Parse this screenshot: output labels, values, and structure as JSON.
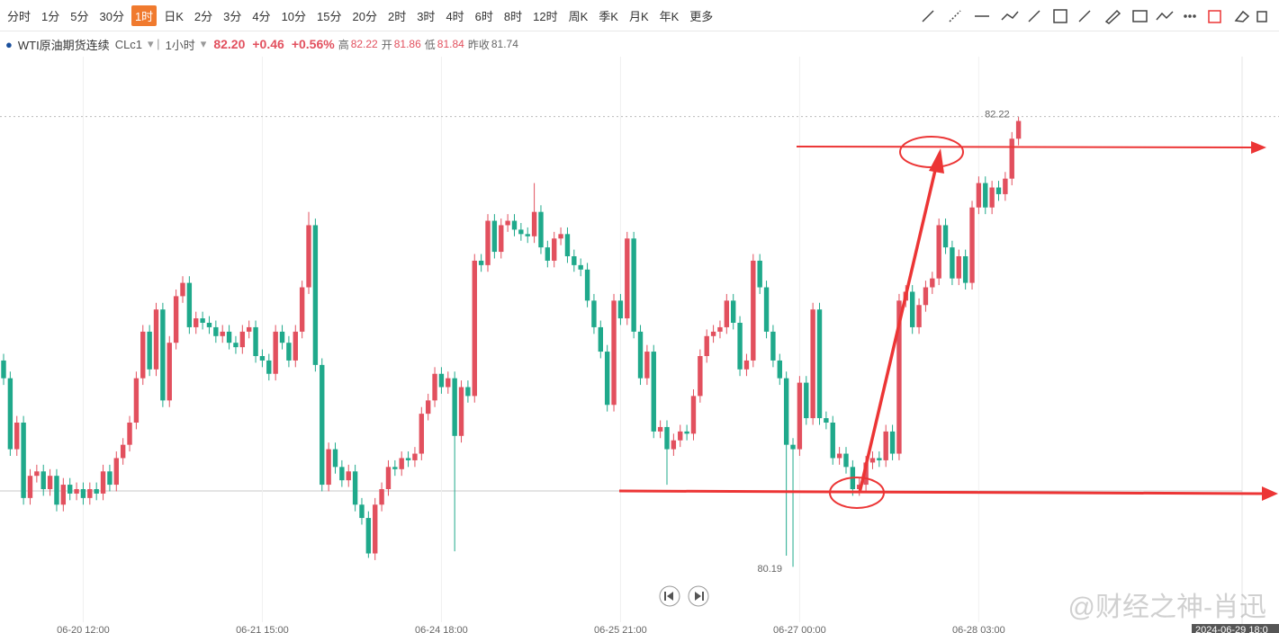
{
  "toolbar": {
    "periods": [
      "分时",
      "1分",
      "5分",
      "30分",
      "1时",
      "日K",
      "2分",
      "3分",
      "4分",
      "10分",
      "15分",
      "20分",
      "2时",
      "3时",
      "4时",
      "6时",
      "8时",
      "12时",
      "周K",
      "季K",
      "月K",
      "年K",
      "更多"
    ],
    "selected": "1时"
  },
  "info": {
    "name": "WTI原油期货连续",
    "code": "CLc1",
    "period": "1小时",
    "last": "82.20",
    "change": "+0.46",
    "change_pct": "+0.56%",
    "high_label": "高",
    "high": "82.22",
    "open_label": "开",
    "open": "81.86",
    "low_label": "低",
    "low": "81.84",
    "prev_label": "昨收",
    "prev": "81.74"
  },
  "watermark": "@财经之神-肖迅",
  "chart_data": {
    "type": "candlestick",
    "up_color": "#e2505e",
    "down_color": "#1fa98b",
    "ylim": [
      79.94,
      82.49
    ],
    "grid": true,
    "crosshair_time": "2024-06-29 18:0",
    "categories": [
      null,
      null,
      null,
      null,
      null,
      null,
      null,
      null,
      null,
      null,
      null,
      null,
      "06-20 12:00",
      null,
      null,
      null,
      null,
      null,
      null,
      null,
      null,
      null,
      null,
      null,
      null,
      null,
      null,
      null,
      null,
      null,
      null,
      null,
      null,
      null,
      null,
      null,
      null,
      null,
      null,
      "06-21 15:00",
      null,
      null,
      null,
      null,
      null,
      null,
      null,
      null,
      null,
      null,
      null,
      null,
      null,
      null,
      null,
      null,
      null,
      null,
      null,
      null,
      null,
      null,
      null,
      null,
      null,
      null,
      "06-24 18:00",
      null,
      null,
      null,
      null,
      null,
      null,
      null,
      null,
      null,
      null,
      null,
      null,
      null,
      null,
      null,
      null,
      null,
      null,
      null,
      null,
      null,
      null,
      null,
      null,
      null,
      null,
      "06-25 21:00",
      null,
      null,
      null,
      null,
      null,
      null,
      null,
      null,
      null,
      null,
      null,
      null,
      null,
      null,
      null,
      null,
      null,
      null,
      null,
      null,
      null,
      null,
      null,
      null,
      null,
      null,
      "06-27 00:00",
      null,
      null,
      null,
      null,
      null,
      null,
      null,
      null,
      null,
      null,
      null,
      null,
      null,
      null,
      null,
      null,
      null,
      null,
      null,
      null,
      null,
      null,
      null,
      null,
      null,
      null,
      "06-28 03:00",
      null,
      null,
      null,
      null,
      null,
      null
    ],
    "open": [
      81.12,
      81.04,
      80.72,
      80.84,
      80.5,
      80.6,
      80.62,
      80.54,
      80.6,
      80.47,
      80.56,
      80.52,
      80.54,
      80.5,
      80.54,
      80.52,
      80.62,
      80.56,
      80.68,
      80.74,
      80.84,
      81.04,
      81.25,
      81.08,
      81.35,
      80.94,
      81.2,
      81.41,
      81.47,
      81.27,
      81.31,
      81.29,
      81.27,
      81.23,
      81.25,
      81.2,
      81.18,
      81.25,
      81.27,
      81.14,
      81.12,
      81.06,
      81.25,
      81.2,
      81.12,
      81.25,
      81.45,
      81.73,
      81.1,
      80.56,
      80.72,
      80.64,
      80.58,
      80.62,
      80.47,
      80.41,
      80.25,
      80.47,
      80.54,
      80.64,
      80.63,
      80.68,
      80.67,
      80.7,
      80.88,
      80.94,
      81.06,
      81.0,
      81.04,
      80.78,
      81.0,
      80.96,
      81.57,
      81.55,
      81.75,
      81.61,
      81.73,
      81.75,
      81.71,
      81.69,
      81.68,
      81.79,
      81.63,
      81.57,
      81.67,
      81.69,
      81.59,
      81.55,
      81.53,
      81.39,
      81.27,
      81.16,
      80.92,
      81.39,
      81.31,
      81.67,
      81.25,
      81.04,
      81.16,
      80.8,
      80.82,
      80.72,
      80.76,
      80.8,
      80.79,
      80.96,
      81.14,
      81.23,
      81.25,
      81.27,
      81.39,
      81.29,
      81.08,
      81.12,
      81.57,
      81.45,
      81.25,
      81.12,
      81.04,
      80.74,
      80.72,
      81.02,
      80.86,
      81.35,
      80.86,
      80.84,
      80.68,
      80.7,
      80.64,
      80.54,
      80.56,
      80.66,
      80.68,
      80.67,
      80.8,
      80.7,
      81.39,
      81.43,
      81.27,
      81.37,
      81.45,
      81.49,
      81.73,
      81.63,
      81.49,
      81.59,
      81.47,
      81.81,
      81.92,
      81.81,
      81.9,
      81.87,
      81.94,
      82.12
    ],
    "high": [
      81.15,
      81.07,
      80.87,
      80.87,
      80.63,
      80.65,
      80.65,
      80.63,
      80.63,
      80.59,
      80.59,
      80.57,
      80.57,
      80.57,
      80.57,
      80.65,
      80.65,
      80.71,
      80.77,
      80.87,
      81.07,
      81.28,
      81.28,
      81.38,
      81.38,
      81.23,
      81.44,
      81.5,
      81.5,
      81.34,
      81.34,
      81.32,
      81.3,
      81.28,
      81.28,
      81.23,
      81.28,
      81.3,
      81.3,
      81.17,
      81.15,
      81.28,
      81.28,
      81.23,
      81.28,
      81.48,
      81.79,
      81.76,
      81.13,
      80.75,
      80.75,
      80.67,
      80.65,
      80.65,
      80.5,
      80.44,
      80.5,
      80.57,
      80.67,
      80.67,
      80.71,
      80.71,
      80.73,
      80.91,
      80.97,
      81.09,
      81.09,
      81.07,
      81.07,
      81.03,
      81.03,
      81.6,
      81.6,
      81.78,
      81.78,
      81.76,
      81.78,
      81.78,
      81.74,
      81.72,
      81.92,
      81.82,
      81.66,
      81.7,
      81.72,
      81.72,
      81.62,
      81.58,
      81.56,
      81.42,
      81.3,
      81.19,
      81.42,
      81.42,
      81.7,
      81.7,
      81.28,
      81.19,
      81.19,
      80.85,
      80.85,
      80.79,
      80.83,
      80.83,
      80.99,
      81.17,
      81.26,
      81.28,
      81.3,
      81.42,
      81.42,
      81.32,
      81.15,
      81.6,
      81.6,
      81.48,
      81.28,
      81.15,
      81.07,
      80.77,
      81.05,
      81.05,
      81.38,
      81.38,
      80.89,
      80.87,
      80.73,
      80.73,
      80.67,
      80.59,
      80.69,
      80.71,
      80.71,
      80.83,
      80.83,
      81.42,
      81.46,
      81.46,
      81.4,
      81.48,
      81.52,
      81.76,
      81.76,
      81.66,
      81.62,
      81.62,
      81.84,
      81.95,
      81.95,
      81.93,
      81.93,
      81.97,
      82.15,
      82.22
    ],
    "low": [
      81.01,
      80.69,
      80.69,
      80.47,
      80.47,
      80.57,
      80.51,
      80.51,
      80.44,
      80.44,
      80.49,
      80.49,
      80.47,
      80.47,
      80.49,
      80.49,
      80.53,
      80.53,
      80.65,
      80.71,
      80.81,
      81.01,
      81.05,
      81.05,
      80.91,
      80.91,
      81.17,
      81.38,
      81.24,
      81.24,
      81.26,
      81.24,
      81.2,
      81.2,
      81.17,
      81.15,
      81.15,
      81.22,
      81.11,
      81.09,
      81.03,
      81.03,
      81.17,
      81.09,
      81.09,
      81.22,
      81.42,
      81.07,
      80.53,
      80.53,
      80.61,
      80.55,
      80.55,
      80.44,
      80.38,
      80.23,
      80.22,
      80.44,
      80.51,
      80.6,
      80.6,
      80.64,
      80.64,
      80.67,
      80.85,
      80.91,
      80.97,
      80.97,
      80.26,
      80.75,
      80.93,
      80.93,
      81.52,
      81.52,
      81.58,
      81.58,
      81.7,
      81.68,
      81.66,
      81.65,
      81.65,
      81.6,
      81.54,
      81.54,
      81.64,
      81.56,
      81.52,
      81.5,
      81.36,
      81.24,
      81.13,
      80.89,
      80.89,
      81.28,
      81.28,
      81.22,
      81.01,
      81.01,
      80.77,
      80.77,
      80.56,
      80.69,
      80.73,
      80.76,
      80.76,
      80.93,
      81.11,
      81.2,
      81.22,
      81.24,
      81.26,
      81.05,
      81.05,
      81.09,
      81.42,
      81.22,
      81.09,
      81.01,
      80.24,
      80.19,
      80.69,
      80.83,
      80.83,
      80.83,
      80.81,
      80.65,
      80.65,
      80.61,
      80.51,
      80.51,
      80.53,
      80.63,
      80.64,
      80.64,
      80.67,
      80.67,
      81.36,
      81.24,
      81.24,
      81.34,
      81.42,
      81.46,
      81.6,
      81.46,
      81.46,
      81.44,
      81.44,
      81.78,
      81.78,
      81.78,
      81.84,
      81.84,
      81.91,
      82.09
    ],
    "close": [
      81.04,
      80.72,
      80.84,
      80.5,
      80.6,
      80.62,
      80.54,
      80.6,
      80.47,
      80.56,
      80.52,
      80.54,
      80.5,
      80.54,
      80.52,
      80.62,
      80.56,
      80.68,
      80.74,
      80.84,
      81.04,
      81.25,
      81.08,
      81.35,
      80.94,
      81.2,
      81.41,
      81.47,
      81.27,
      81.31,
      81.29,
      81.27,
      81.23,
      81.25,
      81.2,
      81.18,
      81.25,
      81.27,
      81.14,
      81.12,
      81.06,
      81.25,
      81.2,
      81.12,
      81.25,
      81.45,
      81.73,
      81.1,
      80.56,
      80.72,
      80.64,
      80.58,
      80.62,
      80.47,
      80.41,
      80.25,
      80.47,
      80.54,
      80.64,
      80.63,
      80.68,
      80.67,
      80.7,
      80.88,
      80.94,
      81.06,
      81.0,
      81.04,
      80.78,
      81.0,
      80.96,
      81.57,
      81.55,
      81.75,
      81.61,
      81.73,
      81.75,
      81.71,
      81.69,
      81.68,
      81.79,
      81.63,
      81.57,
      81.67,
      81.69,
      81.59,
      81.55,
      81.53,
      81.39,
      81.27,
      81.16,
      80.92,
      81.39,
      81.31,
      81.67,
      81.25,
      81.04,
      81.16,
      80.8,
      80.82,
      80.72,
      80.76,
      80.8,
      80.79,
      80.96,
      81.14,
      81.23,
      81.25,
      81.27,
      81.39,
      81.29,
      81.08,
      81.12,
      81.57,
      81.45,
      81.25,
      81.12,
      81.04,
      80.74,
      80.72,
      81.02,
      80.86,
      81.35,
      80.86,
      80.84,
      80.68,
      80.7,
      80.64,
      80.54,
      80.56,
      80.66,
      80.68,
      80.67,
      80.8,
      80.7,
      81.39,
      81.43,
      81.27,
      81.37,
      81.45,
      81.49,
      81.73,
      81.63,
      81.49,
      81.59,
      81.47,
      81.81,
      81.92,
      81.81,
      81.9,
      81.87,
      81.94,
      82.12,
      82.2
    ]
  }
}
